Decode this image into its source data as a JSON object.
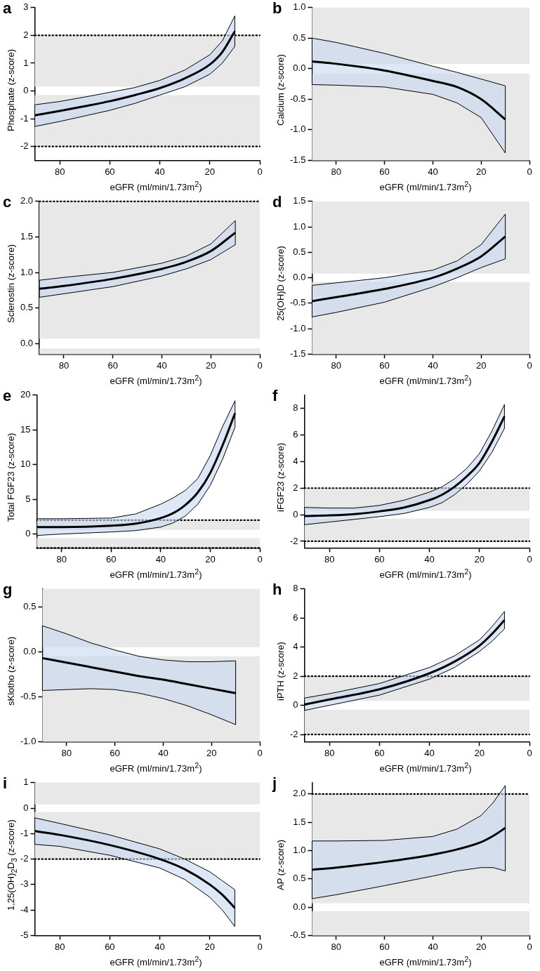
{
  "chart_data": [
    {
      "type": "line",
      "title": "a",
      "xlabel": "eGFR (ml/min/1.73m$^{2}$)",
      "ylabel": "Phosphate (z-score)",
      "grid": false,
      "legend": false,
      "marker": "none",
      "xlim": [
        90,
        0
      ],
      "xticks": [
        80,
        60,
        40,
        20,
        0
      ],
      "ylim": [
        -2.5,
        3
      ],
      "yticks": [
        -2,
        -1,
        0,
        1,
        2,
        3
      ],
      "x": [
        90,
        80,
        70,
        60,
        50,
        40,
        30,
        20,
        15,
        10
      ],
      "series": [
        {
          "color": "#000000",
          "values": [
            -0.88,
            -0.72,
            -0.55,
            -0.37,
            -0.15,
            0.1,
            0.45,
            0.95,
            1.4,
            2.15
          ],
          "lower": [
            -1.28,
            -1.1,
            -0.9,
            -0.7,
            -0.45,
            -0.15,
            0.15,
            0.6,
            1.0,
            1.6
          ],
          "upper": [
            -0.5,
            -0.38,
            -0.22,
            -0.05,
            0.12,
            0.38,
            0.75,
            1.3,
            1.8,
            2.7
          ]
        }
      ],
      "bands": [
        {
          "axis": "y",
          "from": 0.15,
          "to": 2,
          "color": "#e8e8e8"
        },
        {
          "axis": "y",
          "from": -2,
          "to": -0.15,
          "color": "#e8e8e8"
        }
      ],
      "ref_lines": [
        {
          "axis": "y",
          "value": 2,
          "line_style": "dotted",
          "color": "#000000"
        },
        {
          "axis": "y",
          "value": -2,
          "line_style": "dotted",
          "color": "#000000"
        }
      ]
    },
    {
      "type": "line",
      "title": "b",
      "xlabel": "eGFR (ml/min/1.73m$^{2}$)",
      "ylabel": "Calcium (z-score)",
      "grid": false,
      "legend": false,
      "marker": "none",
      "xlim": [
        90,
        0
      ],
      "xticks": [
        80,
        60,
        40,
        20,
        0
      ],
      "ylim": [
        -1.5,
        1
      ],
      "yticks": [
        -1.5,
        {
          "value": -1,
          "label": "-1.0"
        },
        -0.5,
        {
          "value": 0,
          "label": "0.0"
        },
        0.5,
        {
          "value": 1,
          "label": "1.0"
        }
      ],
      "x": [
        90,
        80,
        60,
        40,
        30,
        20,
        10
      ],
      "series": [
        {
          "color": "#000000",
          "values": [
            0.12,
            0.08,
            -0.03,
            -0.2,
            -0.3,
            -0.5,
            -0.83
          ],
          "lower": [
            -0.26,
            -0.27,
            -0.3,
            -0.42,
            -0.56,
            -0.8,
            -1.38
          ],
          "upper": [
            0.5,
            0.43,
            0.25,
            0.04,
            -0.06,
            -0.17,
            -0.28
          ]
        }
      ],
      "bands": [
        {
          "axis": "y",
          "from": 0.08,
          "to": 1,
          "color": "#e8e8e8"
        },
        {
          "axis": "y",
          "from": -1.5,
          "to": -0.08,
          "color": "#e8e8e8"
        }
      ]
    },
    {
      "type": "line",
      "title": "c",
      "xlabel": "eGFR (ml/min/1.73m$^{2}$)",
      "ylabel": "Sclerostin (z-score)",
      "grid": false,
      "legend": false,
      "marker": "none",
      "xlim": [
        90,
        0
      ],
      "xticks": [
        80,
        60,
        40,
        20,
        0
      ],
      "ylim": [
        -0.15,
        2
      ],
      "yticks": [
        {
          "value": 0,
          "label": "0.0"
        },
        0.5,
        {
          "value": 1,
          "label": "1.0"
        },
        1.5,
        {
          "value": 2,
          "label": "2.0"
        }
      ],
      "x": [
        90,
        80,
        60,
        40,
        30,
        20,
        10
      ],
      "series": [
        {
          "color": "#000000",
          "values": [
            0.77,
            0.81,
            0.91,
            1.05,
            1.15,
            1.3,
            1.56
          ],
          "lower": [
            0.65,
            0.7,
            0.8,
            0.95,
            1.05,
            1.18,
            1.39
          ],
          "upper": [
            0.89,
            0.93,
            1.0,
            1.13,
            1.23,
            1.4,
            1.73
          ]
        }
      ],
      "bands": [
        {
          "axis": "y",
          "from": 0.07,
          "to": 2,
          "color": "#e8e8e8"
        },
        {
          "axis": "y",
          "from": -0.15,
          "to": -0.07,
          "color": "#e8e8e8"
        }
      ],
      "ref_lines": [
        {
          "axis": "y",
          "value": 2,
          "line_style": "dotted",
          "color": "#000000"
        }
      ]
    },
    {
      "type": "line",
      "title": "d",
      "xlabel": "eGFR (ml/min/1.73m$^{2}$)",
      "ylabel": "25(OH)D (z-score)",
      "grid": false,
      "legend": false,
      "marker": "none",
      "xlim": [
        90,
        0
      ],
      "xticks": [
        80,
        60,
        40,
        20,
        0
      ],
      "ylim": [
        -1.5,
        1.5
      ],
      "yticks": [
        -1.5,
        {
          "value": -1,
          "label": "-1.0"
        },
        -0.5,
        {
          "value": 0,
          "label": "0.0"
        },
        0.5,
        {
          "value": 1,
          "label": "1.0"
        },
        1.5
      ],
      "x": [
        90,
        80,
        60,
        40,
        30,
        20,
        10
      ],
      "series": [
        {
          "color": "#000000",
          "values": [
            -0.46,
            -0.38,
            -0.22,
            0.0,
            0.18,
            0.42,
            0.81
          ],
          "lower": [
            -0.77,
            -0.68,
            -0.48,
            -0.18,
            0.0,
            0.2,
            0.37
          ],
          "upper": [
            -0.15,
            -0.1,
            0.0,
            0.15,
            0.33,
            0.65,
            1.25
          ]
        }
      ],
      "bands": [
        {
          "axis": "y",
          "from": 0.08,
          "to": 1.5,
          "color": "#e8e8e8"
        },
        {
          "axis": "y",
          "from": -1.5,
          "to": -0.08,
          "color": "#e8e8e8"
        }
      ]
    },
    {
      "type": "line",
      "title": "e",
      "xlabel": "eGFR (ml/min/1.73m$^{2}$)",
      "ylabel": "Total FGF23 (z-score)",
      "grid": false,
      "legend": false,
      "marker": "none",
      "xlim": [
        90,
        0
      ],
      "xticks": [
        80,
        60,
        40,
        20,
        0
      ],
      "ylim": [
        -2,
        20
      ],
      "yticks": [
        0,
        5,
        10,
        15,
        20
      ],
      "x": [
        90,
        80,
        60,
        50,
        40,
        35,
        30,
        25,
        20,
        15,
        10
      ],
      "series": [
        {
          "color": "#000000",
          "values": [
            1.0,
            1.0,
            1.2,
            1.5,
            2.3,
            3.0,
            4.2,
            6.0,
            8.8,
            12.8,
            17.4
          ],
          "lower": [
            -0.2,
            0.0,
            0.3,
            0.5,
            1.0,
            1.6,
            2.6,
            4.3,
            7.0,
            10.8,
            15.4
          ],
          "upper": [
            2.2,
            2.2,
            2.3,
            2.9,
            4.3,
            5.2,
            6.3,
            8.0,
            11.3,
            15.5,
            19.2
          ]
        }
      ],
      "bands": [
        {
          "axis": "y",
          "from": 0.6,
          "to": 2,
          "color": "#e8e8e8"
        },
        {
          "axis": "y",
          "from": -2,
          "to": -0.6,
          "color": "#e8e8e8"
        }
      ],
      "ref_lines": [
        {
          "axis": "y",
          "value": 2,
          "line_style": "dotted",
          "color": "#000000"
        },
        {
          "axis": "y",
          "value": -2,
          "line_style": "dotted",
          "color": "#000000"
        }
      ]
    },
    {
      "type": "line",
      "title": "f",
      "xlabel": "eGFR (ml/min/1.73m$^{2}$)",
      "ylabel": "iFGF23 (z-score)",
      "grid": false,
      "legend": false,
      "marker": "none",
      "xlim": [
        90,
        0
      ],
      "xticks": [
        80,
        60,
        40,
        20,
        0
      ],
      "ylim": [
        -2.5,
        9
      ],
      "yticks": [
        -2,
        0,
        2,
        4,
        6,
        8
      ],
      "x": [
        90,
        80,
        70,
        60,
        50,
        40,
        35,
        30,
        25,
        20,
        15,
        10
      ],
      "series": [
        {
          "color": "#000000",
          "values": [
            -0.1,
            -0.05,
            0.05,
            0.25,
            0.55,
            1.1,
            1.5,
            2.1,
            2.9,
            3.9,
            5.5,
            7.4
          ],
          "lower": [
            -0.75,
            -0.55,
            -0.35,
            -0.15,
            0.1,
            0.55,
            0.9,
            1.5,
            2.3,
            3.3,
            4.7,
            6.5
          ],
          "upper": [
            0.55,
            0.5,
            0.5,
            0.7,
            1.1,
            1.7,
            2.1,
            2.7,
            3.5,
            4.6,
            6.3,
            8.3
          ]
        }
      ],
      "bands": [
        {
          "axis": "y",
          "from": 0.3,
          "to": 2,
          "color": "#e8e8e8"
        },
        {
          "axis": "y",
          "from": -2,
          "to": -0.3,
          "color": "#e8e8e8"
        }
      ],
      "ref_lines": [
        {
          "axis": "y",
          "value": 2,
          "line_style": "dotted",
          "color": "#000000"
        },
        {
          "axis": "y",
          "value": -2,
          "line_style": "dotted",
          "color": "#000000"
        }
      ]
    },
    {
      "type": "line",
      "title": "g",
      "xlabel": "eGFR (ml/min/1.73m$^{2}$)",
      "ylabel": "sKlotho (z-score)",
      "grid": false,
      "legend": false,
      "marker": "none",
      "xlim": [
        90,
        0
      ],
      "xticks": [
        80,
        60,
        40,
        20,
        0
      ],
      "ylim": [
        -1,
        0.7
      ],
      "yticks": [
        {
          "value": -1,
          "label": "-1.0"
        },
        -0.5,
        {
          "value": 0,
          "label": "0.0"
        },
        0.5
      ],
      "x": [
        90,
        80,
        70,
        60,
        50,
        40,
        30,
        20,
        10
      ],
      "series": [
        {
          "color": "#000000",
          "values": [
            -0.07,
            -0.12,
            -0.17,
            -0.22,
            -0.27,
            -0.31,
            -0.36,
            -0.41,
            -0.46
          ],
          "lower": [
            -0.43,
            -0.42,
            -0.41,
            -0.42,
            -0.46,
            -0.52,
            -0.6,
            -0.7,
            -0.81
          ],
          "upper": [
            0.29,
            0.2,
            0.1,
            0.02,
            -0.05,
            -0.09,
            -0.11,
            -0.11,
            -0.1
          ]
        }
      ],
      "bands": [
        {
          "axis": "y",
          "from": 0.05,
          "to": 0.7,
          "color": "#e8e8e8"
        },
        {
          "axis": "y",
          "from": -1,
          "to": -0.05,
          "color": "#e8e8e8"
        }
      ]
    },
    {
      "type": "line",
      "title": "h",
      "xlabel": "eGFR (ml/min/1.73m$^{2}$)",
      "ylabel": "iPTH (z-score)",
      "grid": false,
      "legend": false,
      "marker": "none",
      "xlim": [
        90,
        0
      ],
      "xticks": [
        80,
        60,
        40,
        20,
        0
      ],
      "ylim": [
        -2.5,
        8
      ],
      "yticks": [
        -2,
        0,
        2,
        4,
        6,
        8
      ],
      "x": [
        90,
        80,
        60,
        40,
        30,
        20,
        15,
        10
      ],
      "series": [
        {
          "color": "#000000",
          "values": [
            0.05,
            0.4,
            1.1,
            2.2,
            3.0,
            4.1,
            4.9,
            5.85
          ],
          "lower": [
            -0.35,
            0.0,
            0.7,
            1.8,
            2.6,
            3.7,
            4.4,
            5.25
          ],
          "upper": [
            0.5,
            0.8,
            1.5,
            2.6,
            3.4,
            4.5,
            5.4,
            6.45
          ]
        }
      ],
      "bands": [
        {
          "axis": "y",
          "from": 0.3,
          "to": 2,
          "color": "#e8e8e8"
        },
        {
          "axis": "y",
          "from": -2,
          "to": -0.3,
          "color": "#e8e8e8"
        }
      ],
      "ref_lines": [
        {
          "axis": "y",
          "value": 2,
          "line_style": "dotted",
          "color": "#000000"
        },
        {
          "axis": "y",
          "value": -2,
          "line_style": "dotted",
          "color": "#000000"
        }
      ]
    },
    {
      "type": "line",
      "title": "i",
      "xlabel": "eGFR (ml/min/1.73m$^{2}$)",
      "ylabel": "1,25(OH)$_{2}$D$_{3}$ (z-score)",
      "grid": false,
      "legend": false,
      "marker": "none",
      "xlim": [
        90,
        0
      ],
      "xticks": [
        80,
        60,
        40,
        20,
        0
      ],
      "ylim": [
        -5,
        1
      ],
      "yticks": [
        -5,
        -4,
        -3,
        -2,
        -1,
        0,
        1
      ],
      "x": [
        90,
        80,
        60,
        40,
        30,
        20,
        15,
        10
      ],
      "series": [
        {
          "color": "#000000",
          "values": [
            -0.9,
            -1.05,
            -1.45,
            -2.0,
            -2.4,
            -3.0,
            -3.4,
            -3.92
          ],
          "lower": [
            -1.42,
            -1.5,
            -1.85,
            -2.35,
            -2.8,
            -3.5,
            -4.0,
            -4.65
          ],
          "upper": [
            -0.38,
            -0.6,
            -1.05,
            -1.6,
            -2.0,
            -2.5,
            -2.85,
            -3.2
          ]
        }
      ],
      "bands": [
        {
          "axis": "y",
          "from": 0.15,
          "to": 1,
          "color": "#e8e8e8"
        },
        {
          "axis": "y",
          "from": -2,
          "to": -0.15,
          "color": "#e8e8e8"
        }
      ],
      "ref_lines": [
        {
          "axis": "y",
          "value": -2,
          "line_style": "dotted",
          "color": "#000000"
        }
      ]
    },
    {
      "type": "line",
      "title": "j",
      "xlabel": "eGFR (ml/min/1.73m$^{2}$)",
      "ylabel": "AP (z-score)",
      "grid": false,
      "legend": false,
      "marker": "none",
      "xlim": [
        90,
        0
      ],
      "xticks": [
        80,
        60,
        40,
        20,
        0
      ],
      "ylim": [
        -0.5,
        2.2
      ],
      "yticks": [
        -0.5,
        {
          "value": 0,
          "label": "0.0"
        },
        0.5,
        {
          "value": 1,
          "label": "1.0"
        },
        1.5,
        {
          "value": 2,
          "label": "2.0"
        }
      ],
      "x": [
        90,
        80,
        60,
        40,
        30,
        20,
        15,
        10
      ],
      "series": [
        {
          "color": "#000000",
          "values": [
            0.66,
            0.7,
            0.8,
            0.93,
            1.02,
            1.15,
            1.26,
            1.4
          ],
          "lower": [
            0.15,
            0.22,
            0.38,
            0.55,
            0.64,
            0.7,
            0.7,
            0.64
          ],
          "upper": [
            1.17,
            1.17,
            1.18,
            1.25,
            1.38,
            1.62,
            1.85,
            2.15
          ]
        }
      ],
      "bands": [
        {
          "axis": "y",
          "from": 0.07,
          "to": 2,
          "color": "#e8e8e8"
        },
        {
          "axis": "y",
          "from": -0.5,
          "to": -0.07,
          "color": "#e8e8e8"
        }
      ],
      "ref_lines": [
        {
          "axis": "y",
          "value": 2,
          "line_style": "dotted",
          "color": "#000000"
        }
      ]
    }
  ]
}
